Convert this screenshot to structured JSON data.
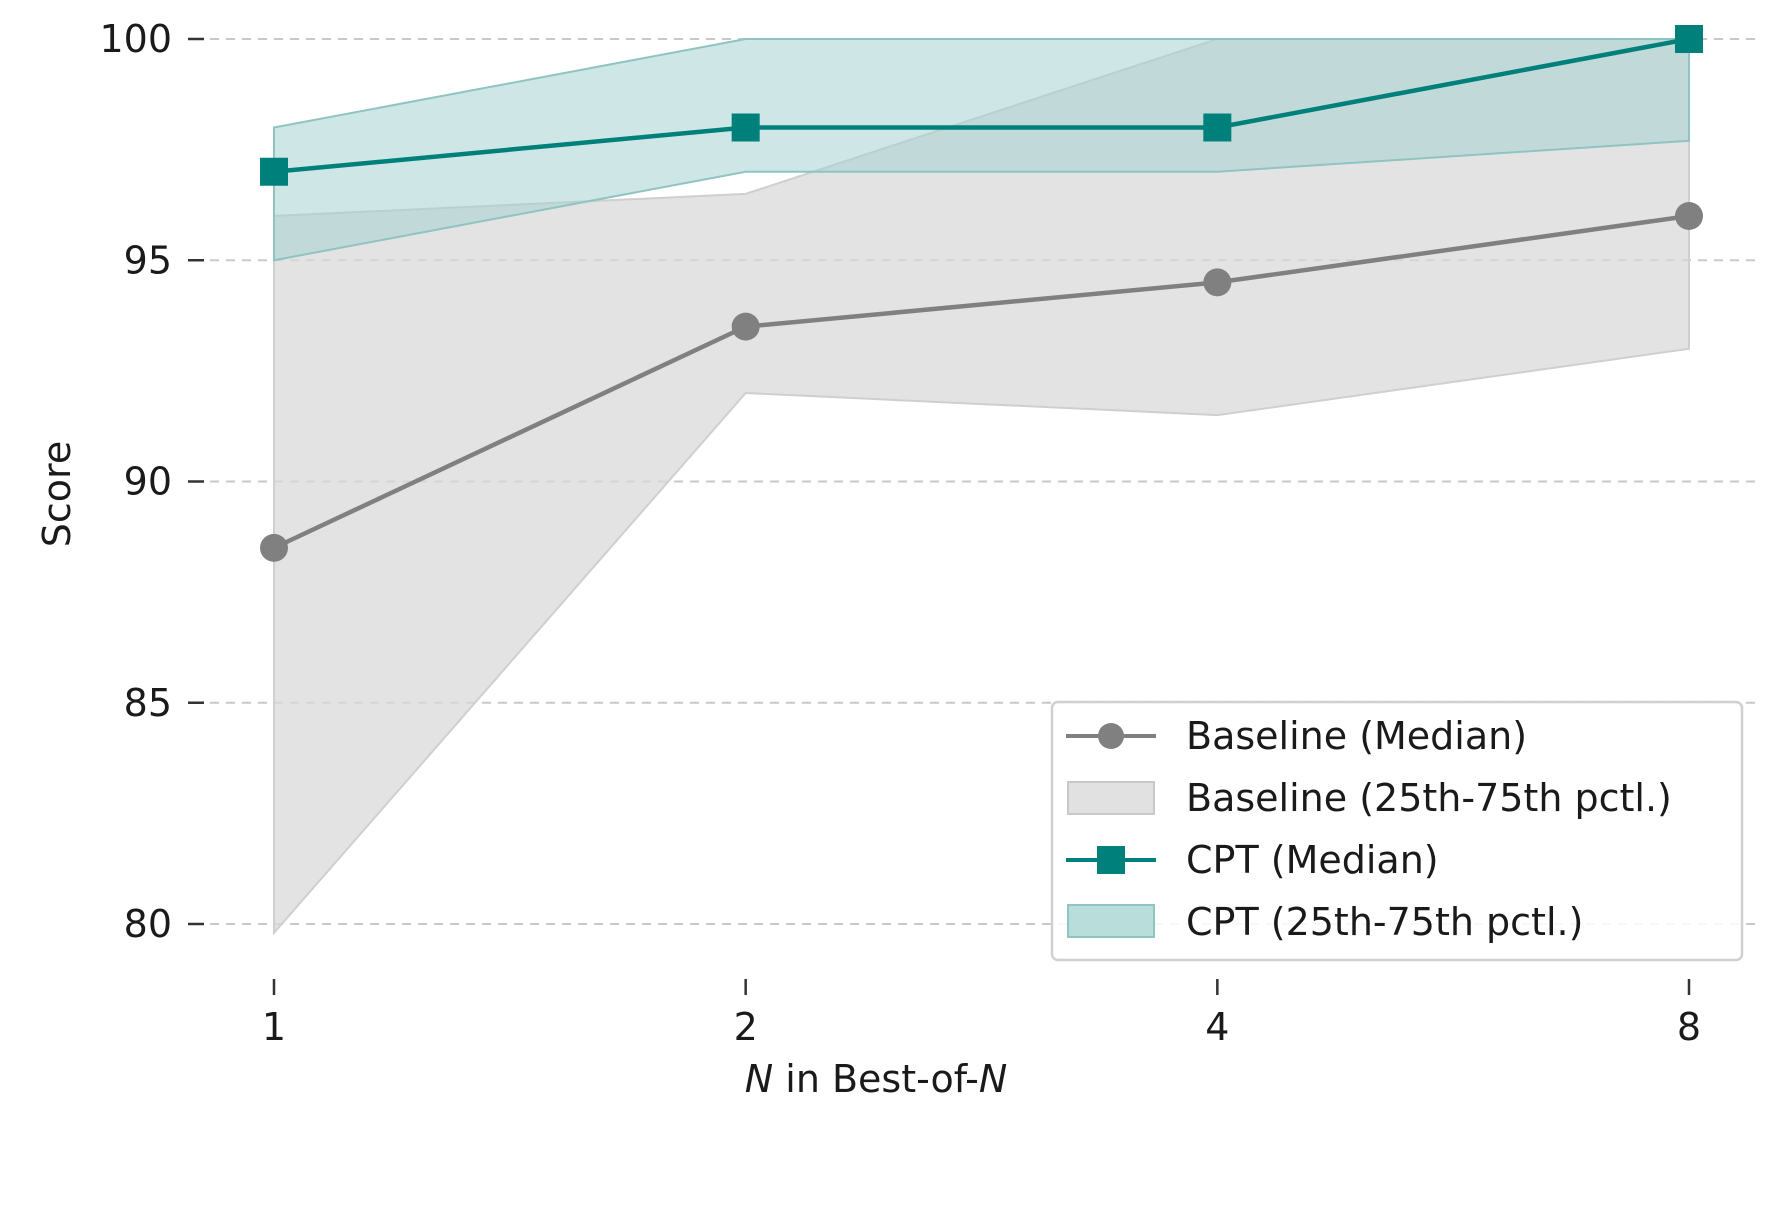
{
  "chart_data": {
    "type": "line",
    "title": "",
    "x": [
      1,
      2,
      4,
      8
    ],
    "x_scale": "log2",
    "xlabel": {
      "var1": "N",
      "middle": " in Best-of-",
      "var2": "N"
    },
    "ylabel": "Score",
    "ylim": [
      79,
      101
    ],
    "yticks": [
      80,
      85,
      90,
      95,
      100
    ],
    "xticks": [
      1,
      2,
      4,
      8
    ],
    "grid": "y-dashed",
    "legend_position": "lower-right",
    "series": [
      {
        "name": "Baseline (Median)",
        "band_name": "Baseline (25th-75th pctl.)",
        "color": "#808080",
        "band_color": "#d9d9d9",
        "marker": "circle",
        "values": [
          88.5,
          93.5,
          94.5,
          96.0
        ],
        "q25": [
          79.8,
          92.0,
          91.5,
          93.0
        ],
        "q75": [
          96.0,
          96.5,
          100.0,
          100.0
        ]
      },
      {
        "name": "CPT (Median)",
        "band_name": "CPT (25th-75th pctl.)",
        "color": "#00807a",
        "band_color": "#a6d4d1",
        "marker": "square",
        "values": [
          97.0,
          98.0,
          98.0,
          100.0
        ],
        "q25": [
          95.0,
          97.0,
          97.0,
          97.7
        ],
        "q75": [
          98.0,
          100.0,
          100.0,
          100.0
        ]
      }
    ]
  }
}
